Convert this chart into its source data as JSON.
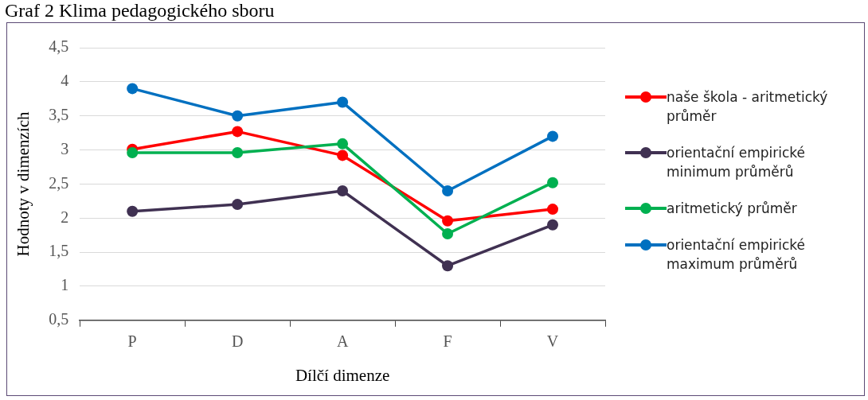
{
  "chart_data": {
    "type": "line",
    "title": "Graf 2 Klima pedagogického sboru",
    "xlabel": "Dílčí dimenze",
    "ylabel": "Hodnoty v dimenzích",
    "categories": [
      "P",
      "D",
      "A",
      "F",
      "V"
    ],
    "series": [
      {
        "name": "naše škola - aritmetický průměr",
        "color": "#ff0000",
        "values": [
          3.01,
          3.27,
          2.92,
          1.96,
          2.13
        ]
      },
      {
        "name": "orientační empirické minimum průměrů",
        "color": "#403152",
        "values": [
          2.1,
          2.2,
          2.4,
          1.3,
          1.9
        ]
      },
      {
        "name": "aritmetický průměr",
        "color": "#00b050",
        "values": [
          2.96,
          2.96,
          3.09,
          1.77,
          2.52
        ]
      },
      {
        "name": "orientační empirické maximum průměrů",
        "color": "#0070c0",
        "values": [
          3.9,
          3.5,
          3.7,
          2.4,
          3.2
        ]
      }
    ],
    "ylim": [
      0.5,
      4.5
    ],
    "yticks": [
      {
        "value": 0.5,
        "label": "0,5"
      },
      1,
      {
        "value": 1.5,
        "label": "1,5"
      },
      2,
      {
        "value": 2.5,
        "label": "2,5"
      },
      3,
      {
        "value": 3.5,
        "label": "3,5"
      },
      4,
      {
        "value": 4.5,
        "label": "4,5"
      }
    ],
    "grid": "y",
    "legend": "right",
    "marker": "circle",
    "line_style": "solid"
  }
}
